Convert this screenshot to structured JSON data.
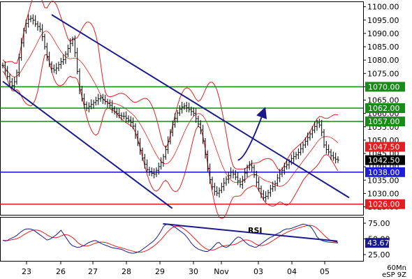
{
  "chart_data": [
    {
      "type": "ohlc",
      "overlays": [
        "bollinger_bands",
        "trend_channel",
        "horizontal_levels"
      ],
      "y_ticks": [
        "1100.00",
        "1095.00",
        "1090.00",
        "1085.00",
        "1080.00",
        "1075.00",
        "1070.00",
        "1065.00",
        "1060.00",
        "1055.00",
        "1050.00",
        "1045.00",
        "1040.00",
        "1035.00",
        "1030.00",
        "1025.00"
      ],
      "ylim": [
        1022,
        1102
      ],
      "x_ticks": [
        "23",
        "26",
        "27",
        "28",
        "29",
        "30",
        "Nov",
        "03",
        "04",
        "05"
      ],
      "levels": [
        {
          "value": 1070.0,
          "label": "1070.00",
          "color": "#1a8a1a"
        },
        {
          "value": 1062.0,
          "label": "1062.00",
          "color": "#1a8a1a"
        },
        {
          "value": 1057.0,
          "label": "1057.00",
          "color": "#1a8a1a"
        },
        {
          "value": 1038.0,
          "label": "1038.00",
          "color": "#1e1ed8"
        },
        {
          "value": 1026.0,
          "label": "1026.00",
          "color": "#e02020"
        }
      ],
      "price_tags": [
        {
          "value": 1047.5,
          "label": "1047.50",
          "color": "#e02020"
        },
        {
          "value": 1042.5,
          "label": "1042.50",
          "color": "#000000"
        }
      ],
      "close_series": [
        1078,
        1075,
        1072,
        1070,
        1074,
        1082,
        1090,
        1094,
        1096,
        1095,
        1093,
        1092,
        1088,
        1082,
        1078,
        1076,
        1077,
        1079,
        1080,
        1083,
        1086,
        1088,
        1078,
        1068,
        1064,
        1062,
        1063,
        1064,
        1065,
        1066,
        1065,
        1064,
        1063,
        1061,
        1060,
        1059,
        1059,
        1058,
        1057,
        1055,
        1050,
        1046,
        1042,
        1039,
        1038,
        1037,
        1039,
        1041,
        1044,
        1048,
        1053,
        1057,
        1060,
        1062,
        1063,
        1062,
        1061,
        1060,
        1057,
        1054,
        1048,
        1040,
        1034,
        1031,
        1030,
        1032,
        1034,
        1036,
        1038,
        1037,
        1035,
        1033,
        1037,
        1040,
        1041,
        1037,
        1033,
        1030,
        1028,
        1030,
        1032,
        1033,
        1036,
        1038,
        1040,
        1041,
        1043,
        1044,
        1045,
        1047,
        1049,
        1051,
        1053,
        1055,
        1057,
        1054,
        1047,
        1046,
        1044,
        1043,
        1042.5
      ],
      "channel_lines": [
        {
          "from": {
            "bar": 21,
            "value": 1097
          },
          "to": {
            "bar": 144,
            "value": 1030
          }
        },
        {
          "from": {
            "bar": 0,
            "value": 1072
          },
          "to": {
            "bar": 68,
            "value": 1026
          }
        }
      ],
      "arrow": {
        "from": {
          "bar": 101,
          "value": 1042.5
        },
        "to": {
          "bar": 108,
          "value": 1061
        }
      }
    },
    {
      "type": "line",
      "name": "RSI",
      "y_ticks": [
        "75.00",
        "50.00",
        "25.00"
      ],
      "ylim": [
        15,
        85
      ],
      "current_value_label": "43.67",
      "rsi_series": [
        48,
        46,
        50,
        52,
        55,
        60,
        64,
        66,
        66,
        64,
        60,
        56,
        52,
        48,
        50,
        54,
        58,
        64,
        56,
        48,
        40,
        38,
        36,
        38,
        40,
        44,
        46,
        48,
        45,
        42,
        40,
        38,
        36,
        35,
        34,
        33,
        30,
        28,
        27,
        28,
        30,
        34,
        38,
        42,
        46,
        52,
        60,
        70,
        74,
        72,
        70,
        66,
        62,
        58,
        52,
        44,
        38,
        34,
        32,
        30,
        30,
        34,
        40,
        46,
        40,
        36,
        38,
        44,
        50,
        54,
        50,
        44,
        40,
        38,
        36,
        40,
        44,
        48,
        52,
        54,
        58,
        60,
        64,
        66,
        66,
        68,
        70,
        72,
        74,
        72,
        70,
        62,
        52,
        48,
        46,
        45,
        44.5,
        44,
        43.67
      ],
      "trend_line": {
        "from": {
          "bar": 47,
          "value": 74
        },
        "to": {
          "bar": 92,
          "value": 43
        }
      }
    }
  ],
  "timeframe": "60Mn",
  "symbol": "eSP 9Z"
}
